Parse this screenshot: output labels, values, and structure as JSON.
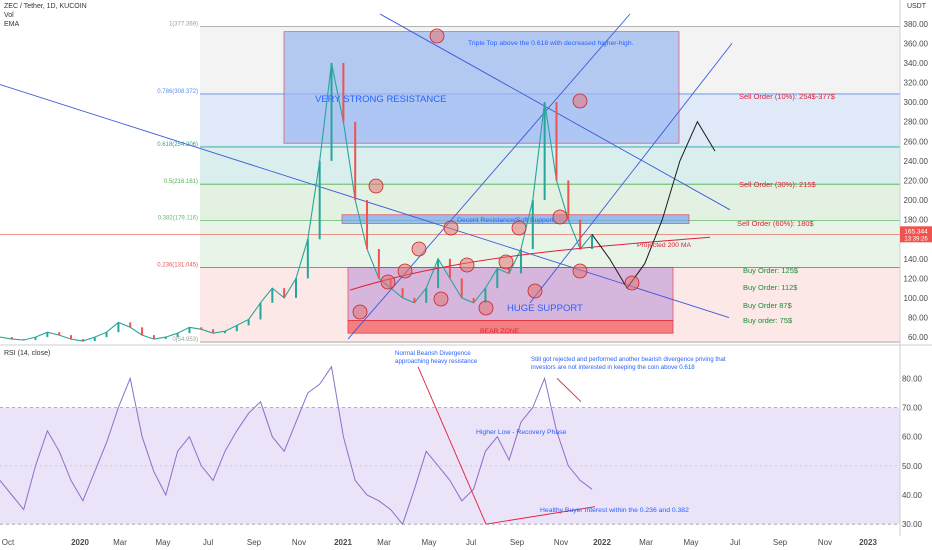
{
  "header": {
    "symbol": "ZEC / Tether, 1D, KUCOIN",
    "line2": "Vol",
    "line3": "EMA",
    "currency": "USDT",
    "rsi_title": "RSI (14, close)"
  },
  "colors": {
    "resistance_box": "#9ab8f2",
    "support_box": "#c9a6d8",
    "bear_zone": "#f26d6d",
    "price_up": "#26a69a",
    "price_down": "#ef5350",
    "rsi_line": "#8c6fc8",
    "annotation_blue": "#2962ff",
    "annotation_red": "#e0203a",
    "annotation_green": "#1a8c3a",
    "circle": "#e57373"
  },
  "annotations": {
    "triple_top": "Triple Top above the 0.618 with decreased higher-high.",
    "very_strong": "VERY STRONG RESISTANCE",
    "decent_resistance": "Decent Resistance/Soft Support",
    "projected_ma": "Projected 200 MA",
    "huge_support": "HUGE SUPPORT",
    "bear_zone": "BEAR ZONE",
    "sell_10": "Sell Order (10%): 254$-377$",
    "sell_30": "Sell Order (30%): 215$",
    "sell_60": "Sell Order (60%): 180$",
    "buy_125": "Buy Order: 125$",
    "buy_112": "Buy Order: 112$",
    "buy_87": "Buy Order 87$",
    "buy_75": "Buy order: 75$",
    "rsi_div1_a": "Normal Bearish Divergence",
    "rsi_div1_b": "approaching heavy resistance",
    "rsi_div2_a": "Still got rejected and performed another bearish divergence priving that",
    "rsi_div2_b": "investors are not interested in keeping the coin above 0.618",
    "rsi_higher_low": "Higher Low - Recovery Phase",
    "rsi_healthy": "Healthy Buyer Interest within the 0.236 and 0.382"
  },
  "fib_labels": [
    {
      "ratio": "1",
      "text": "1(377.369)"
    },
    {
      "ratio": "0.786",
      "text": "0.786(308.372)"
    },
    {
      "ratio": "0.618",
      "text": "0.618(254.206)"
    },
    {
      "ratio": "0.5",
      "text": "0.5(216.161)"
    },
    {
      "ratio": "0.382",
      "text": "0.382(179.116)"
    },
    {
      "ratio": "0.236",
      "text": "0.236(131.045)"
    },
    {
      "ratio": "0",
      "text": "0(54.953)"
    }
  ],
  "price_badge": {
    "value": "165.344",
    "time": "13:39:26"
  },
  "chart_data": [
    {
      "type": "line",
      "title": "ZEC / Tether, 1D, KUCOIN",
      "ylabel": "USDT",
      "ylim": [
        55,
        390
      ],
      "y_ticks": [
        60,
        80,
        100,
        120,
        140,
        160,
        180,
        200,
        220,
        240,
        260,
        280,
        300,
        320,
        340,
        360,
        380
      ],
      "x_ticks": [
        "Oct",
        "2020",
        "Mar",
        "May",
        "Jul",
        "Sep",
        "Nov",
        "2021",
        "Mar",
        "May",
        "Jul",
        "Sep",
        "Nov",
        "2022",
        "Mar",
        "May",
        "Jul",
        "Sep",
        "Nov",
        "2023"
      ],
      "fib_levels": [
        {
          "ratio": 1,
          "value": 377.369
        },
        {
          "ratio": 0.786,
          "value": 308.372
        },
        {
          "ratio": 0.618,
          "value": 254.206
        },
        {
          "ratio": 0.5,
          "value": 216.161
        },
        {
          "ratio": 0.382,
          "value": 179.116
        },
        {
          "ratio": 0.236,
          "value": 131.045
        },
        {
          "ratio": 0,
          "value": 54.953
        }
      ],
      "series": [
        {
          "values": [
            60,
            58,
            57,
            60,
            65,
            62,
            58,
            56,
            60,
            65,
            75,
            70,
            62,
            58,
            60,
            64,
            70,
            68,
            64,
            66,
            72,
            78,
            95,
            110,
            100,
            120,
            160,
            240,
            340,
            280,
            200,
            150,
            120,
            110,
            100,
            95,
            110,
            140,
            120,
            100,
            95,
            110,
            130,
            125,
            150,
            200,
            300,
            220,
            180,
            150,
            165
          ]
        }
      ],
      "projection": [
        165,
        140,
        110,
        135,
        180,
        240,
        280,
        250
      ]
    },
    {
      "type": "line",
      "title": "RSI (14, close)",
      "ylim": [
        28,
        88
      ],
      "y_ticks": [
        30,
        40,
        50,
        60,
        70,
        80
      ],
      "bands": [
        30,
        70
      ],
      "series": [
        {
          "values": [
            45,
            40,
            35,
            50,
            62,
            55,
            45,
            38,
            48,
            58,
            70,
            80,
            60,
            48,
            40,
            55,
            60,
            50,
            45,
            55,
            62,
            68,
            72,
            60,
            55,
            65,
            75,
            78,
            84,
            60,
            45,
            40,
            38,
            35,
            30,
            42,
            55,
            50,
            45,
            38,
            42,
            55,
            60,
            52,
            65,
            70,
            80,
            62,
            50,
            45,
            42
          ]
        }
      ]
    }
  ]
}
